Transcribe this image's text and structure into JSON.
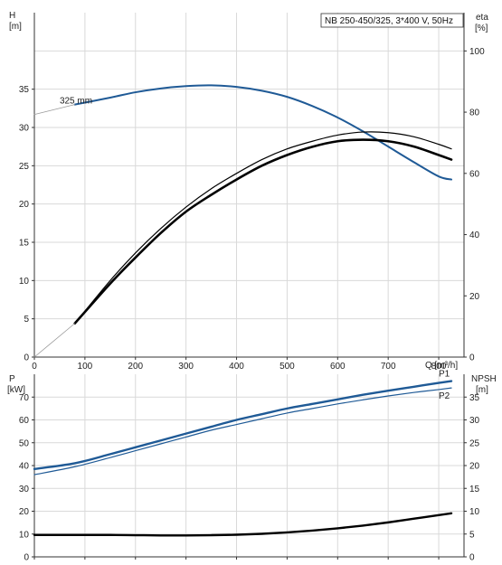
{
  "colors": {
    "blue": "#1f5a96",
    "black": "#000000",
    "grid": "#d9d9d9",
    "axis": "#333333",
    "gray_line": "#9a9a9a"
  },
  "chart_data": [
    {
      "type": "line",
      "title": "NB 250-450/325, 3*400 V, 50Hz",
      "xlabel": "Q [m³/h]",
      "ylabel_top": "H",
      "ylabel_bottom": "[m]",
      "y2label_top": "eta",
      "y2label_bottom": "[%]",
      "xlim": [
        0,
        850
      ],
      "ylim": [
        0,
        45
      ],
      "y2lim": [
        0,
        112.5
      ],
      "xticks": [
        "0",
        "100",
        "200",
        "300",
        "400",
        "500",
        "600",
        "700",
        "800"
      ],
      "yticks": [
        "0",
        "5",
        "10",
        "15",
        "20",
        "25",
        "30",
        "35"
      ],
      "y2ticks": [
        "0",
        "20",
        "40",
        "60",
        "80",
        "100"
      ],
      "grid": true,
      "annotations": [
        {
          "text": "325 mm",
          "x": 50,
          "y": 33
        }
      ],
      "series": [
        {
          "axis": "y",
          "color": "blue",
          "x": [
            80,
            150,
            200,
            250,
            300,
            350,
            400,
            450,
            500,
            550,
            600,
            650,
            700,
            750,
            800,
            825
          ],
          "y": [
            33.0,
            33.9,
            34.6,
            35.1,
            35.4,
            35.5,
            35.3,
            34.8,
            34.0,
            32.8,
            31.3,
            29.5,
            27.5,
            25.5,
            23.6,
            23.2
          ]
        },
        {
          "axis": "y",
          "color": "gray_line",
          "dashed": false,
          "x": [
            0,
            80
          ],
          "y": [
            31.7,
            33.0
          ]
        },
        {
          "axis": "y2",
          "color": "black",
          "width": 1.2,
          "x": [
            80,
            150,
            200,
            250,
            300,
            350,
            400,
            450,
            500,
            550,
            600,
            650,
            700,
            750,
            800,
            825
          ],
          "y": [
            11,
            25,
            34,
            42,
            49,
            55,
            60,
            64.5,
            68,
            70.5,
            72.5,
            73.5,
            73.3,
            72,
            69.5,
            68
          ]
        },
        {
          "axis": "y2",
          "color": "black",
          "width": 2.6,
          "x": [
            80,
            150,
            200,
            250,
            300,
            350,
            400,
            450,
            500,
            550,
            600,
            650,
            700,
            750,
            800,
            825
          ],
          "y": [
            11,
            24,
            32.5,
            40.5,
            47.5,
            53,
            58,
            62.5,
            66,
            68.7,
            70.5,
            71,
            70.5,
            68.8,
            66,
            64.5
          ]
        },
        {
          "axis": "y2",
          "color": "gray_line",
          "x": [
            0,
            80
          ],
          "y": [
            0,
            11
          ]
        }
      ]
    },
    {
      "type": "line",
      "xlabel": "",
      "ylabel_top": "P",
      "ylabel_bottom": "[kW]",
      "y2label_top": "NPSH",
      "y2label_bottom": "[m]",
      "xlim": [
        0,
        850
      ],
      "ylim": [
        0,
        80
      ],
      "y2lim": [
        0,
        40
      ],
      "yticks": [
        "0",
        "10",
        "20",
        "30",
        "40",
        "50",
        "60",
        "70"
      ],
      "y2ticks": [
        "0",
        "5",
        "10",
        "15",
        "20",
        "25",
        "30",
        "35"
      ],
      "grid": true,
      "series": [
        {
          "name": "P1",
          "axis": "y",
          "color": "blue",
          "width": 2.4,
          "x": [
            0,
            80,
            150,
            200,
            250,
            300,
            350,
            400,
            450,
            500,
            550,
            600,
            650,
            700,
            750,
            800,
            825
          ],
          "y": [
            38.5,
            41,
            45,
            48,
            51,
            54,
            57,
            60,
            62.5,
            65,
            67,
            69,
            71,
            72.8,
            74.5,
            76.2,
            77
          ]
        },
        {
          "name": "P2",
          "axis": "y",
          "color": "blue",
          "width": 1.2,
          "x": [
            0,
            80,
            150,
            200,
            250,
            300,
            350,
            400,
            450,
            500,
            550,
            600,
            650,
            700,
            750,
            800,
            825
          ],
          "y": [
            36,
            39.5,
            43.5,
            46.5,
            49.5,
            52.5,
            55.5,
            58,
            60.5,
            63,
            65,
            67,
            68.8,
            70.5,
            72,
            73.3,
            74
          ]
        },
        {
          "axis": "y2",
          "color": "black",
          "width": 2.4,
          "x": [
            0,
            80,
            150,
            200,
            250,
            300,
            350,
            400,
            450,
            500,
            550,
            600,
            650,
            700,
            750,
            800,
            825
          ],
          "y": [
            4.8,
            4.8,
            4.8,
            4.75,
            4.7,
            4.7,
            4.75,
            4.85,
            5.05,
            5.35,
            5.75,
            6.25,
            6.85,
            7.55,
            8.35,
            9.15,
            9.55
          ]
        }
      ]
    }
  ]
}
